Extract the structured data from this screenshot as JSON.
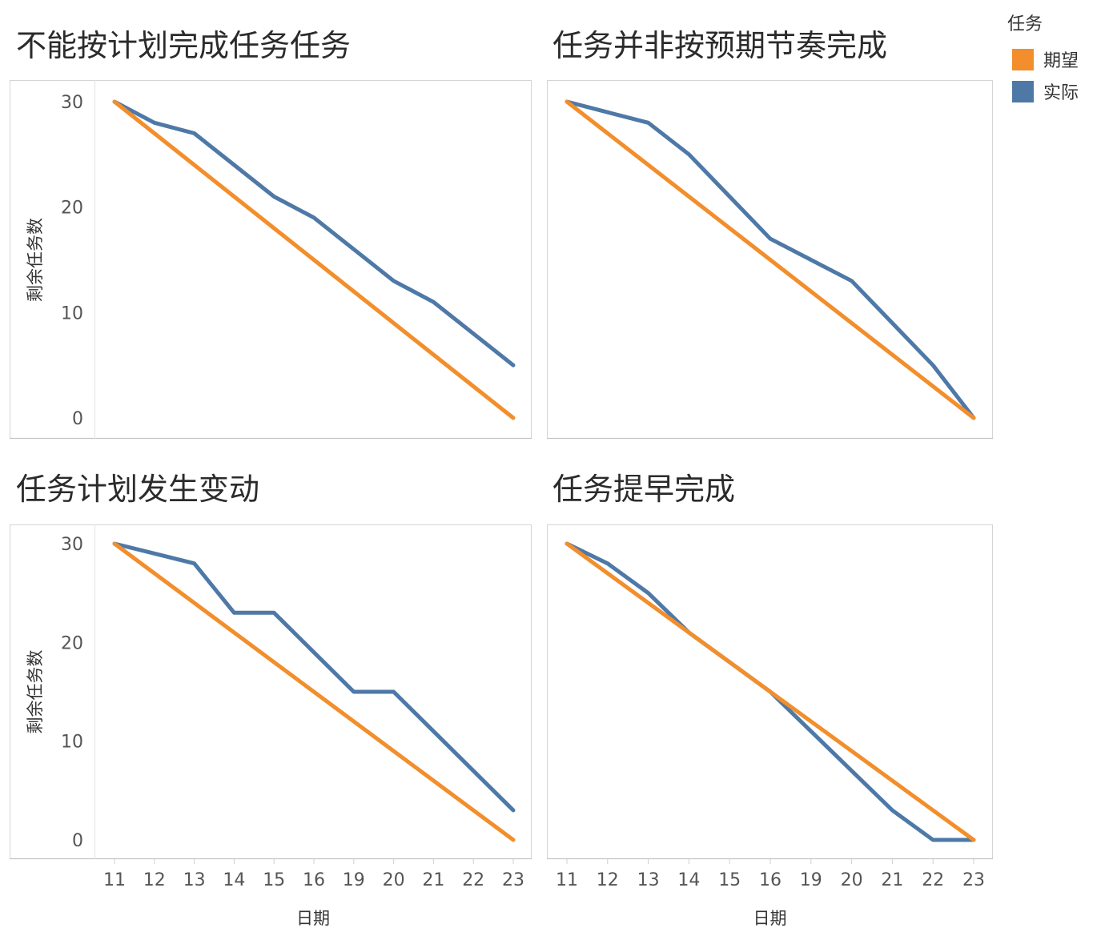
{
  "legend": {
    "title": "任务",
    "items": [
      {
        "label": "期望",
        "color": "#f28e2b"
      },
      {
        "label": "实际",
        "color": "#4e79a7"
      }
    ]
  },
  "axes": {
    "ylabel": "剩余任务数",
    "xlabel": "日期",
    "x_categories": [
      "11",
      "12",
      "13",
      "14",
      "15",
      "16",
      "19",
      "20",
      "21",
      "22",
      "23"
    ],
    "y_ticks": [
      0,
      10,
      20,
      30
    ],
    "ylim": [
      0,
      30
    ]
  },
  "chart_data": [
    {
      "type": "line",
      "title": "不能按计划完成任务任务",
      "categories": [
        "11",
        "12",
        "13",
        "14",
        "15",
        "16",
        "19",
        "20",
        "21",
        "22",
        "23"
      ],
      "series": [
        {
          "name": "期望",
          "values": [
            30,
            27,
            24,
            21,
            18,
            15,
            12,
            9,
            6,
            3,
            0
          ]
        },
        {
          "name": "实际",
          "values": [
            30,
            28,
            27,
            24,
            21,
            19,
            16,
            13,
            11,
            8,
            5
          ]
        }
      ],
      "ylim": [
        0,
        30
      ]
    },
    {
      "type": "line",
      "title": "任务并非按预期节奏完成",
      "categories": [
        "11",
        "12",
        "13",
        "14",
        "15",
        "16",
        "19",
        "20",
        "21",
        "22",
        "23"
      ],
      "series": [
        {
          "name": "期望",
          "values": [
            30,
            27,
            24,
            21,
            18,
            15,
            12,
            9,
            6,
            3,
            0
          ]
        },
        {
          "name": "实际",
          "values": [
            30,
            29,
            28,
            25,
            21,
            17,
            15,
            13,
            9,
            5,
            0
          ]
        }
      ],
      "ylim": [
        0,
        30
      ]
    },
    {
      "type": "line",
      "title": "任务计划发生变动",
      "categories": [
        "11",
        "12",
        "13",
        "14",
        "15",
        "16",
        "19",
        "20",
        "21",
        "22",
        "23"
      ],
      "series": [
        {
          "name": "期望",
          "values": [
            30,
            27,
            24,
            21,
            18,
            15,
            12,
            9,
            6,
            3,
            0
          ]
        },
        {
          "name": "实际",
          "values": [
            30,
            29,
            28,
            23,
            23,
            19,
            15,
            15,
            11,
            7,
            3
          ]
        }
      ],
      "ylim": [
        0,
        30
      ]
    },
    {
      "type": "line",
      "title": "任务提早完成",
      "categories": [
        "11",
        "12",
        "13",
        "14",
        "15",
        "16",
        "19",
        "20",
        "21",
        "22",
        "23"
      ],
      "series": [
        {
          "name": "期望",
          "values": [
            30,
            27,
            24,
            21,
            18,
            15,
            12,
            9,
            6,
            3,
            0
          ]
        },
        {
          "name": "实际",
          "values": [
            30,
            28,
            25,
            21,
            18,
            15,
            11,
            7,
            3,
            0,
            0
          ]
        }
      ],
      "ylim": [
        0,
        30
      ]
    }
  ]
}
